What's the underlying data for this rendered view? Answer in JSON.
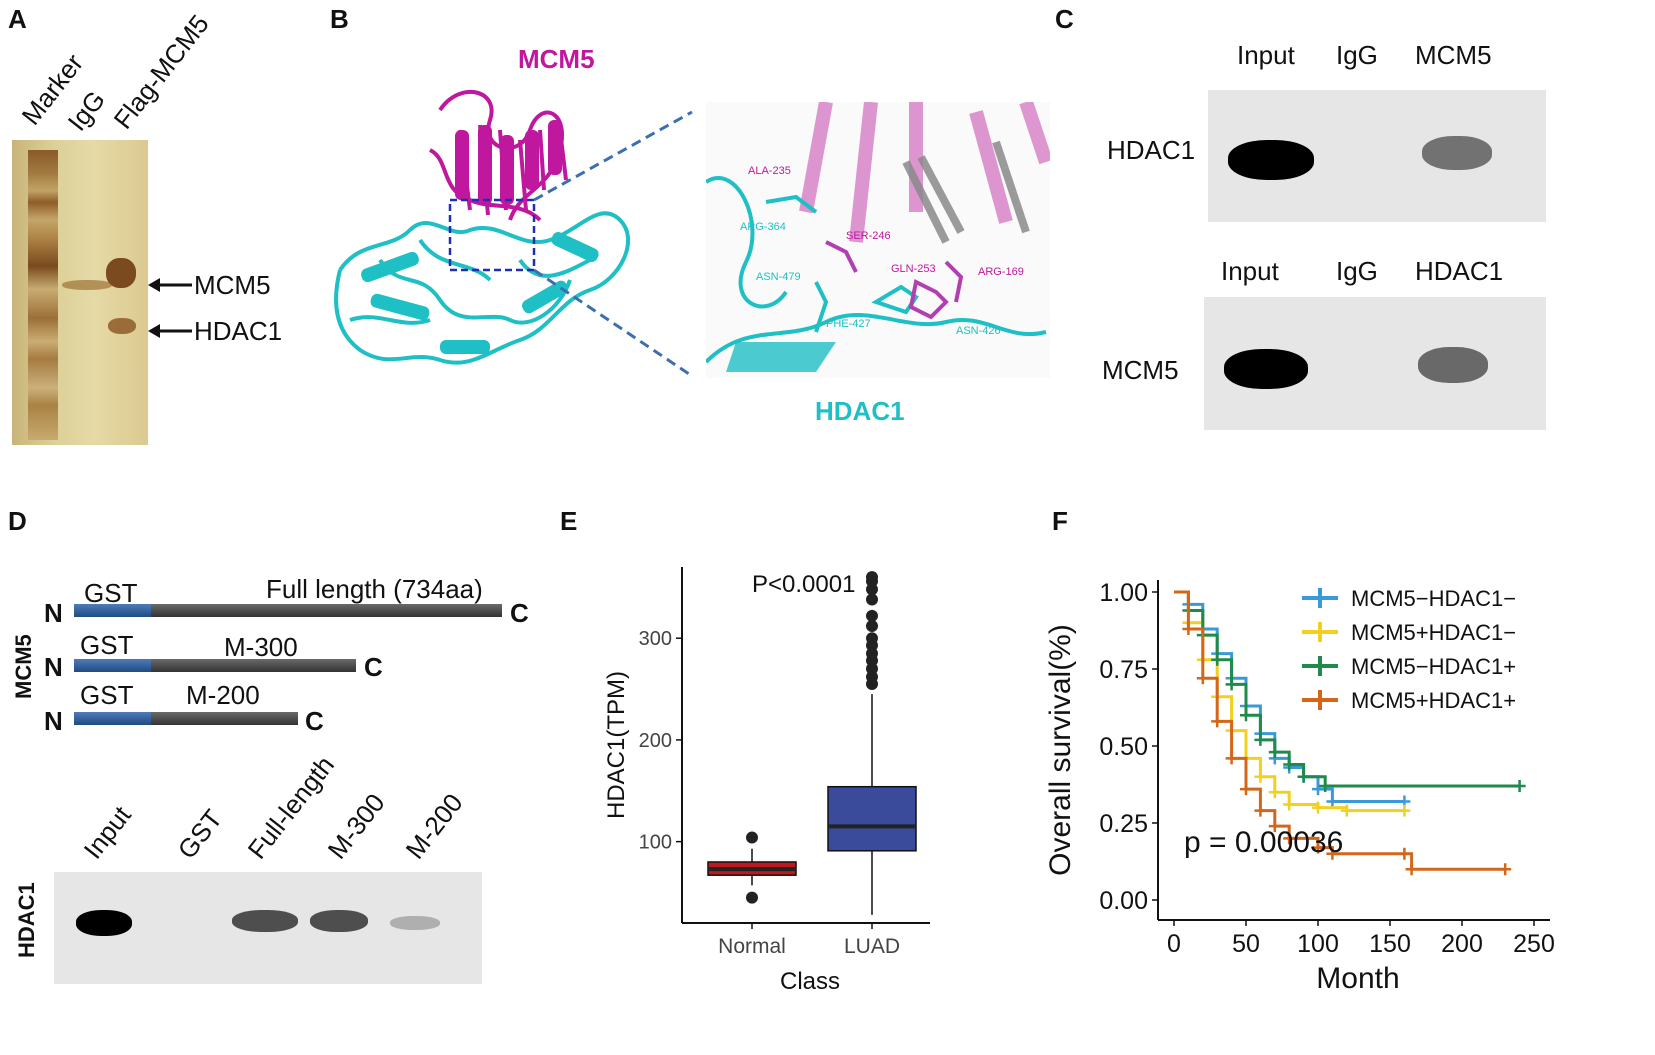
{
  "panels": {
    "A": {
      "letter": "A",
      "lanes": [
        "Marker",
        "IgG",
        "Flag-MCM5"
      ],
      "arrows": [
        "MCM5",
        "HDAC1"
      ]
    },
    "B": {
      "letter": "B",
      "protein_top": "MCM5",
      "protein_bottom": "HDAC1",
      "residues": [
        "ALA-235",
        "ARG-364",
        "SER-246",
        "ASN-479",
        "GLN-253",
        "ARG-169",
        "PHE-427",
        "ASN-426"
      ],
      "colors": {
        "mcm5": "#c0179f",
        "hdac1": "#1fbfc6"
      }
    },
    "C": {
      "letter": "C",
      "top_headers": [
        "Input",
        "IgG",
        "MCM5"
      ],
      "top_row_label": "HDAC1",
      "bottom_headers": [
        "Input",
        "IgG",
        "HDAC1"
      ],
      "bottom_row_label": "MCM5"
    },
    "D": {
      "letter": "D",
      "side_label": "MCM5",
      "constructs": [
        {
          "tag": "GST",
          "name": "Full length (734aa)",
          "n": "N",
          "c": "C"
        },
        {
          "tag": "GST",
          "name": "M-300",
          "n": "N",
          "c": "C"
        },
        {
          "tag": "GST",
          "name": "M-200",
          "n": "N",
          "c": "C"
        }
      ],
      "lanes": [
        "Input",
        "GST",
        "Full-length",
        "M-300",
        "M-200"
      ],
      "blot_label": "HDAC1"
    },
    "E": {
      "letter": "E"
    },
    "F": {
      "letter": "F"
    }
  },
  "chart_data": [
    {
      "type": "box",
      "panel": "E",
      "xlabel": "Class",
      "ylabel": "HDAC1(TPM)",
      "categories": [
        "Normal",
        "LUAD"
      ],
      "yticks": [
        100,
        200,
        300
      ],
      "annotation": "P<0.0001",
      "boxes": [
        {
          "name": "Normal",
          "color": "#c0181f",
          "whisker_low": 57,
          "q1": 67,
          "median": 73,
          "q3": 80,
          "whisker_high": 93,
          "outliers": [
            45,
            104
          ]
        },
        {
          "name": "LUAD",
          "color": "#3a4b9c",
          "whisker_low": 28,
          "q1": 91,
          "median": 115,
          "q3": 154,
          "whisker_high": 245,
          "outliers": [
            255,
            262,
            270,
            278,
            285,
            293,
            300,
            312,
            322,
            338,
            348,
            356,
            360
          ]
        }
      ]
    },
    {
      "type": "line",
      "panel": "F",
      "xlabel": "Month",
      "ylabel": "Overall survival(%)",
      "xticks": [
        0,
        50,
        100,
        150,
        200,
        250
      ],
      "yticks": [
        "0.00",
        "0.25",
        "0.50",
        "0.75",
        "1.00"
      ],
      "xlim": [
        0,
        250
      ],
      "ylim": [
        0,
        1
      ],
      "annotation": "p = 0.00036",
      "series": [
        {
          "name": "MCM5−HDAC1−",
          "color": "#3a9ad9",
          "x": [
            0,
            10,
            20,
            30,
            40,
            50,
            60,
            70,
            80,
            90,
            100,
            110,
            160
          ],
          "y": [
            1.0,
            0.96,
            0.88,
            0.8,
            0.72,
            0.63,
            0.54,
            0.46,
            0.43,
            0.4,
            0.36,
            0.32,
            0.32
          ]
        },
        {
          "name": "MCM5+HDAC1−",
          "color": "#f2d01f",
          "x": [
            0,
            10,
            20,
            30,
            40,
            50,
            60,
            70,
            80,
            100,
            120,
            160
          ],
          "y": [
            1.0,
            0.9,
            0.78,
            0.66,
            0.55,
            0.46,
            0.4,
            0.35,
            0.31,
            0.3,
            0.29,
            0.29
          ]
        },
        {
          "name": "MCM5−HDAC1+",
          "color": "#1f8a4a",
          "x": [
            0,
            10,
            20,
            30,
            40,
            50,
            60,
            70,
            80,
            90,
            105,
            240
          ],
          "y": [
            1.0,
            0.94,
            0.86,
            0.78,
            0.7,
            0.6,
            0.52,
            0.48,
            0.44,
            0.4,
            0.37,
            0.37
          ]
        },
        {
          "name": "MCM5+HDAC1+",
          "color": "#d4661a",
          "x": [
            0,
            10,
            20,
            30,
            40,
            50,
            60,
            70,
            80,
            100,
            110,
            160,
            165,
            230
          ],
          "y": [
            1.0,
            0.88,
            0.72,
            0.58,
            0.46,
            0.36,
            0.29,
            0.24,
            0.2,
            0.17,
            0.15,
            0.15,
            0.1,
            0.1
          ]
        }
      ]
    }
  ]
}
